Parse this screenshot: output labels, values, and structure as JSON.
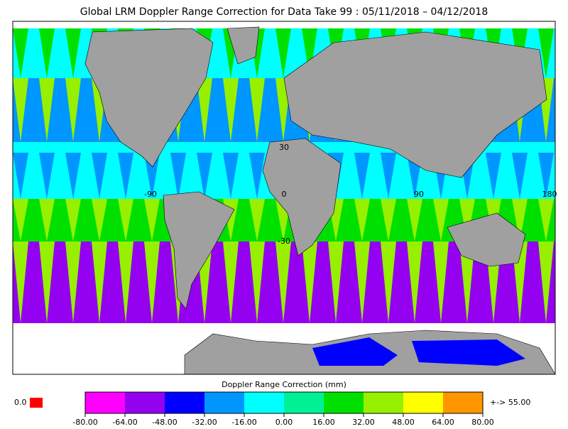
{
  "header": {
    "title": "Global LRM Doppler Range Correction for Data Take 99 : 05/11/2018 – 04/12/2018"
  },
  "map": {
    "labels": [
      {
        "text": "30",
        "role": "lat"
      },
      {
        "text": "-90",
        "role": "lon"
      },
      {
        "text": "0",
        "role": "lon"
      },
      {
        "text": "90",
        "role": "lon"
      },
      {
        "text": "180",
        "role": "lon"
      },
      {
        "text": "-30",
        "role": "lat"
      }
    ]
  },
  "colorbar": {
    "title": "Doppler Range Correction (mm)",
    "colors": [
      "#ff00ff",
      "#9400f0",
      "#0000ff",
      "#0096ff",
      "#00ffff",
      "#00f096",
      "#00e000",
      "#96f000",
      "#ffff00",
      "#ff9600"
    ],
    "ticks": [
      "-80.00",
      "-64.00",
      "-48.00",
      "-32.00",
      "-16.00",
      "0.00",
      "16.00",
      "32.00",
      "48.00",
      "64.00",
      "80.00"
    ],
    "under_label": "0.0",
    "under_color": "#ff0000",
    "over_label": "+-> 55.00",
    "over_color": "#e08000"
  }
}
